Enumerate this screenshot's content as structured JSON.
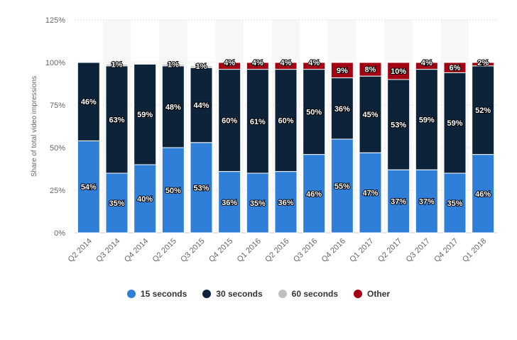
{
  "chart_data": {
    "type": "bar",
    "stacked": true,
    "title": "",
    "xlabel": "",
    "ylabel": "Share of total video impressions",
    "ylim": [
      0,
      125
    ],
    "yticks": [
      "0%",
      "25%",
      "50%",
      "75%",
      "100%",
      "125%"
    ],
    "categories": [
      "Q2 2014",
      "Q3 2014",
      "Q4 2014",
      "Q2 2015",
      "Q3 2015",
      "Q4 2015",
      "Q1 2016",
      "Q2 2016",
      "Q3 2016",
      "Q4 2016",
      "Q1 2017",
      "Q2 2017",
      "Q3 2017",
      "Q4 2017",
      "Q1 2018"
    ],
    "series": [
      {
        "name": "15 seconds",
        "color": "#2f7ed8",
        "values": [
          54,
          35,
          40,
          50,
          53,
          36,
          35,
          36,
          46,
          55,
          47,
          37,
          37,
          35,
          46
        ]
      },
      {
        "name": "30 seconds",
        "color": "#0d233a",
        "values": [
          46,
          63,
          59,
          48,
          44,
          60,
          61,
          60,
          50,
          36,
          45,
          53,
          59,
          59,
          52
        ]
      },
      {
        "name": "60 seconds",
        "color": "#c0c0c0",
        "values": [
          0,
          1,
          0,
          1,
          1,
          0,
          0,
          0,
          0,
          0,
          0,
          0,
          0,
          0,
          0
        ]
      },
      {
        "name": "Other",
        "color": "#a30013",
        "values": [
          0,
          0,
          0,
          0,
          0,
          4,
          4,
          4,
          4,
          9,
          8,
          10,
          4,
          6,
          2
        ]
      }
    ],
    "legend_position": "bottom",
    "grid": true
  }
}
